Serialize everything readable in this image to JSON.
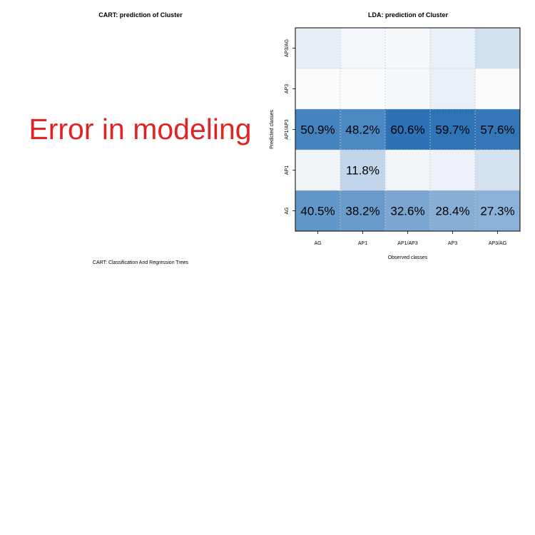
{
  "panels": {
    "cart": {
      "title": "CART: prediction of Cluster",
      "error_message": "Error in modeling",
      "caption": "CART: Classification And Regression Trees",
      "error_color": "#e02424"
    },
    "lda": {
      "title": "LDA: prediction of Cluster"
    }
  },
  "chart_data": [
    {
      "type": "heatmap",
      "title": "LDA: prediction of Cluster",
      "xlabel": "Observed classes",
      "ylabel": "Predicted classes",
      "x_categories": [
        "AG",
        "AP1",
        "AP1/AP3",
        "AP3",
        "AP3/AG"
      ],
      "y_categories": [
        "AG",
        "AP1",
        "AP1/AP3",
        "AP3",
        "AP3/AG"
      ],
      "grid": true,
      "color_scale": {
        "low": "#ffffff",
        "high": "#2b72b6"
      },
      "values": [
        [
          40.5,
          38.2,
          32.6,
          28.4,
          27.3
        ],
        [
          2.0,
          11.8,
          1.5,
          2.5,
          7.0
        ],
        [
          50.9,
          48.2,
          60.6,
          59.7,
          57.6
        ],
        [
          0.5,
          0.5,
          1.0,
          3.0,
          0.5
        ],
        [
          3.5,
          1.3,
          1.0,
          3.0,
          8.0
        ]
      ],
      "labels": [
        [
          "40.5%",
          "38.2%",
          "32.6%",
          "28.4%",
          "27.3%"
        ],
        [
          "",
          "11.8%",
          "",
          "",
          ""
        ],
        [
          "50.9%",
          "48.2%",
          "60.6%",
          "59.7%",
          "57.6%"
        ],
        [
          "",
          "",
          "",
          "",
          ""
        ],
        [
          "",
          "",
          "",
          "",
          ""
        ]
      ]
    }
  ]
}
